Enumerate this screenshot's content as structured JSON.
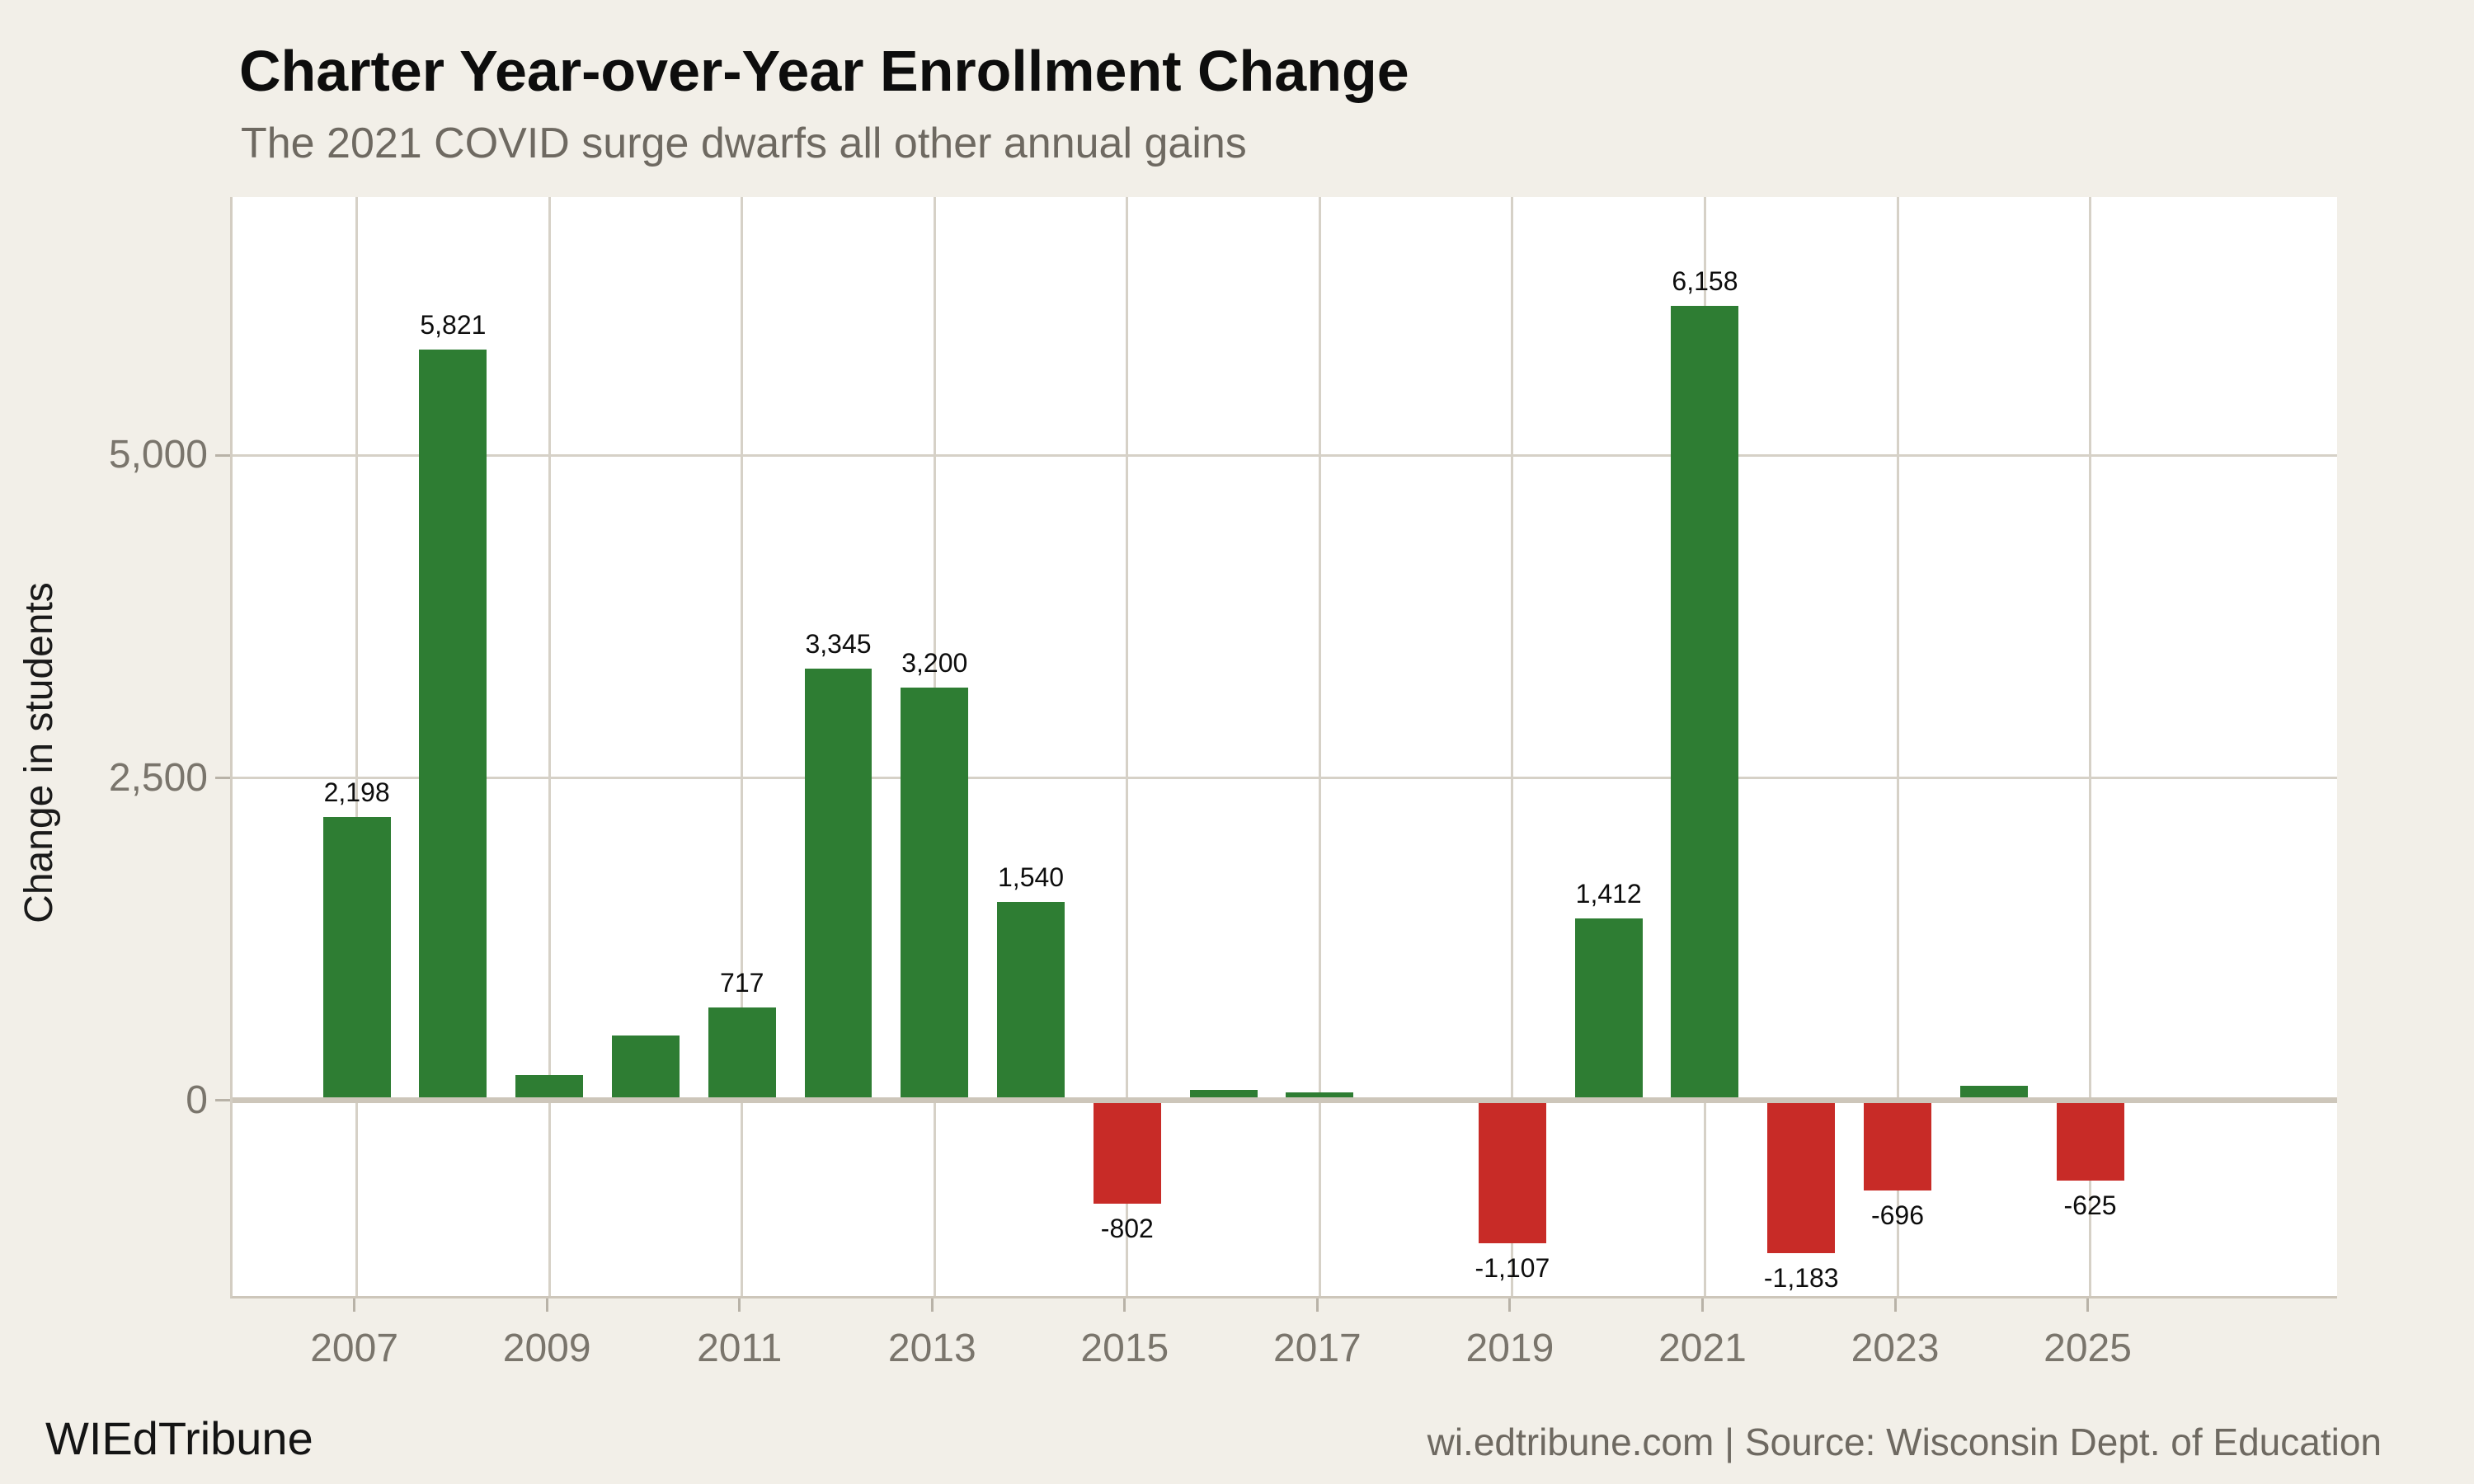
{
  "header": {
    "title": "Charter Year-over-Year Enrollment Change",
    "subtitle": "The 2021 COVID surge dwarfs all other annual gains"
  },
  "axes": {
    "y_axis_title": "Change in students"
  },
  "footer": {
    "brand": "WIEdTribune",
    "source": "wi.edtribune.com | Source: Wisconsin Dept. of Education"
  },
  "colors": {
    "background": "#f2efe8",
    "panel": "#ffffff",
    "gridline": "#d6d1c7",
    "zero_line": "#cdc6ba",
    "tick": "#b8b2a7",
    "tick_text": "#7a756c",
    "title_text": "#0d0d0d",
    "subtitle_text": "#6e6961",
    "positive_bar": "#2e7d33",
    "negative_bar": "#c82b27",
    "bar_label_text": "#0d0d0d"
  },
  "chart_data": {
    "type": "bar",
    "title": "Charter Year-over-Year Enrollment Change",
    "subtitle": "The 2021 COVID surge dwarfs all other annual gains",
    "xlabel": "",
    "ylabel": "Change in students",
    "x": [
      2007,
      2008,
      2009,
      2010,
      2011,
      2012,
      2013,
      2014,
      2015,
      2016,
      2017,
      2018,
      2019,
      2020,
      2021,
      2022,
      2023,
      2024,
      2025
    ],
    "values": [
      2198,
      5821,
      195,
      500,
      717,
      3345,
      3200,
      1540,
      -802,
      80,
      60,
      0,
      -1107,
      1412,
      6158,
      -1183,
      -696,
      110,
      -625
    ],
    "bar_labels": [
      "2,198",
      "5,821",
      null,
      null,
      "717",
      "3,345",
      "3,200",
      "1,540",
      "-802",
      null,
      null,
      null,
      "-1,107",
      "1,412",
      "6,158",
      "-1,183",
      "-696",
      null,
      "-625"
    ],
    "xticks": [
      2007,
      2009,
      2011,
      2013,
      2015,
      2017,
      2019,
      2021,
      2023,
      2025
    ],
    "yticks": [
      {
        "value": 0,
        "label": "0"
      },
      {
        "value": 2500,
        "label": "2,500"
      },
      {
        "value": 5000,
        "label": "5,000"
      }
    ],
    "xlim": [
      2005.71,
      2027.59
    ],
    "ylim": [
      -1536,
      7003
    ],
    "bar_width_years": 0.702,
    "grid": true,
    "legend": "none",
    "positive_color": "#2e7d33",
    "negative_color": "#c82b27"
  }
}
